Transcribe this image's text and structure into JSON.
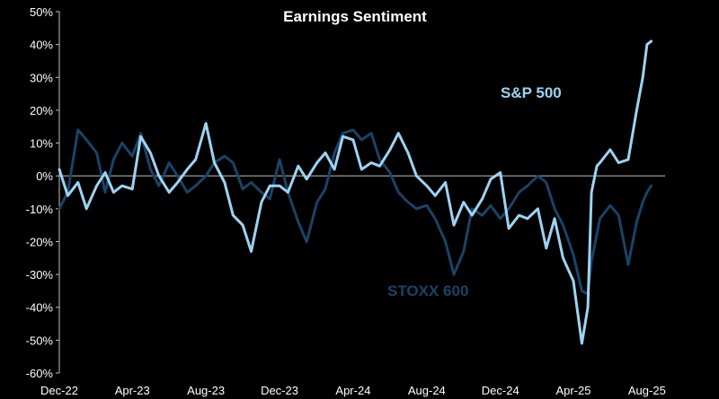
{
  "chart_data": {
    "type": "line",
    "title": "Earnings Sentiment",
    "xlabel": "",
    "ylabel": "",
    "x_tick_labels": [
      "Dec-22",
      "Apr-23",
      "Aug-23",
      "Dec-23",
      "Apr-24",
      "Aug-24",
      "Dec-24",
      "Apr-25",
      "Aug-25"
    ],
    "y_tick_labels": [
      "50%",
      "40%",
      "30%",
      "20%",
      "10%",
      "0%",
      "-10%",
      "-20%",
      "-30%",
      "-40%",
      "-50%",
      "-60%"
    ],
    "y_ticks": [
      50,
      40,
      30,
      20,
      10,
      0,
      -10,
      -20,
      -30,
      -40,
      -50,
      -60
    ],
    "ylim": [
      -60,
      50
    ],
    "x_start": "2022-12-01",
    "x_end": "2025-08-31",
    "grid": false,
    "colors": {
      "background": "#000000",
      "axis": "#bfbfbf",
      "sp500": "#9dd3f2",
      "stoxx600": "#1b4266",
      "text": "#ffffff"
    },
    "series": [
      {
        "name": "S&P 500",
        "color": "#9dd3f2",
        "points": [
          [
            "2022-12-01",
            2
          ],
          [
            "2022-12-15",
            -6
          ],
          [
            "2023-01-01",
            -2
          ],
          [
            "2023-01-15",
            -10
          ],
          [
            "2023-02-01",
            -3
          ],
          [
            "2023-02-15",
            1
          ],
          [
            "2023-03-01",
            -5
          ],
          [
            "2023-03-15",
            -3
          ],
          [
            "2023-04-01",
            -4
          ],
          [
            "2023-04-15",
            12
          ],
          [
            "2023-05-01",
            7
          ],
          [
            "2023-05-15",
            0
          ],
          [
            "2023-06-01",
            -5
          ],
          [
            "2023-06-15",
            -2
          ],
          [
            "2023-07-01",
            2
          ],
          [
            "2023-07-15",
            5
          ],
          [
            "2023-08-01",
            16
          ],
          [
            "2023-08-15",
            4
          ],
          [
            "2023-09-01",
            -2
          ],
          [
            "2023-09-15",
            -12
          ],
          [
            "2023-10-01",
            -15
          ],
          [
            "2023-10-15",
            -23
          ],
          [
            "2023-11-01",
            -8
          ],
          [
            "2023-11-15",
            -3
          ],
          [
            "2023-12-01",
            -3
          ],
          [
            "2023-12-15",
            -5
          ],
          [
            "2024-01-01",
            3
          ],
          [
            "2024-01-15",
            -1
          ],
          [
            "2024-02-01",
            4
          ],
          [
            "2024-02-15",
            7
          ],
          [
            "2024-03-01",
            2
          ],
          [
            "2024-03-15",
            12
          ],
          [
            "2024-04-01",
            11
          ],
          [
            "2024-04-15",
            2
          ],
          [
            "2024-05-01",
            4
          ],
          [
            "2024-05-15",
            3
          ],
          [
            "2024-06-01",
            8
          ],
          [
            "2024-06-15",
            13
          ],
          [
            "2024-07-01",
            7
          ],
          [
            "2024-07-15",
            0
          ],
          [
            "2024-08-01",
            -3
          ],
          [
            "2024-08-15",
            -6
          ],
          [
            "2024-09-01",
            -2
          ],
          [
            "2024-09-15",
            -15
          ],
          [
            "2024-10-01",
            -8
          ],
          [
            "2024-10-15",
            -12
          ],
          [
            "2024-11-01",
            -7
          ],
          [
            "2024-11-15",
            -1
          ],
          [
            "2024-12-01",
            1
          ],
          [
            "2024-12-15",
            -16
          ],
          [
            "2025-01-01",
            -12
          ],
          [
            "2025-01-15",
            -13
          ],
          [
            "2025-02-01",
            -10
          ],
          [
            "2025-02-15",
            -22
          ],
          [
            "2025-03-01",
            -13
          ],
          [
            "2025-03-15",
            -25
          ],
          [
            "2025-04-01",
            -32
          ],
          [
            "2025-04-15",
            -51
          ],
          [
            "2025-04-25",
            -40
          ],
          [
            "2025-05-01",
            -5
          ],
          [
            "2025-05-10",
            3
          ],
          [
            "2025-05-15",
            4
          ],
          [
            "2025-06-01",
            8
          ],
          [
            "2025-06-15",
            4
          ],
          [
            "2025-07-01",
            5
          ],
          [
            "2025-07-15",
            20
          ],
          [
            "2025-07-25",
            30
          ],
          [
            "2025-08-01",
            40
          ],
          [
            "2025-08-08",
            41
          ]
        ]
      },
      {
        "name": "STOXX 600",
        "color": "#1b4266",
        "points": [
          [
            "2022-12-01",
            -10
          ],
          [
            "2022-12-15",
            -5
          ],
          [
            "2023-01-01",
            14
          ],
          [
            "2023-01-15",
            11
          ],
          [
            "2023-02-01",
            7
          ],
          [
            "2023-02-15",
            -5
          ],
          [
            "2023-03-01",
            5
          ],
          [
            "2023-03-15",
            10
          ],
          [
            "2023-04-01",
            6
          ],
          [
            "2023-04-15",
            13
          ],
          [
            "2023-05-01",
            2
          ],
          [
            "2023-05-15",
            -3
          ],
          [
            "2023-06-01",
            4
          ],
          [
            "2023-06-15",
            0
          ],
          [
            "2023-07-01",
            -5
          ],
          [
            "2023-07-15",
            -3
          ],
          [
            "2023-08-01",
            0
          ],
          [
            "2023-08-15",
            4
          ],
          [
            "2023-09-01",
            6
          ],
          [
            "2023-09-15",
            4
          ],
          [
            "2023-10-01",
            -4
          ],
          [
            "2023-10-15",
            -2
          ],
          [
            "2023-11-01",
            -5
          ],
          [
            "2023-11-15",
            -7
          ],
          [
            "2023-12-01",
            5
          ],
          [
            "2023-12-15",
            -5
          ],
          [
            "2024-01-01",
            -14
          ],
          [
            "2024-01-15",
            -20
          ],
          [
            "2024-02-01",
            -8
          ],
          [
            "2024-02-15",
            -4
          ],
          [
            "2024-03-01",
            7
          ],
          [
            "2024-03-15",
            13
          ],
          [
            "2024-04-01",
            14
          ],
          [
            "2024-04-15",
            11
          ],
          [
            "2024-05-01",
            13
          ],
          [
            "2024-05-15",
            5
          ],
          [
            "2024-06-01",
            1
          ],
          [
            "2024-06-15",
            -5
          ],
          [
            "2024-07-01",
            -8
          ],
          [
            "2024-07-15",
            -10
          ],
          [
            "2024-08-01",
            -9
          ],
          [
            "2024-08-15",
            -13
          ],
          [
            "2024-09-01",
            -20
          ],
          [
            "2024-09-15",
            -30
          ],
          [
            "2024-10-01",
            -23
          ],
          [
            "2024-10-15",
            -10
          ],
          [
            "2024-11-01",
            -12
          ],
          [
            "2024-11-15",
            -9
          ],
          [
            "2024-12-01",
            -13
          ],
          [
            "2024-12-15",
            -10
          ],
          [
            "2025-01-01",
            -5
          ],
          [
            "2025-01-15",
            -3
          ],
          [
            "2025-02-01",
            0
          ],
          [
            "2025-02-15",
            -2
          ],
          [
            "2025-03-01",
            -10
          ],
          [
            "2025-03-15",
            -15
          ],
          [
            "2025-04-01",
            -24
          ],
          [
            "2025-04-15",
            -35
          ],
          [
            "2025-04-25",
            -36
          ],
          [
            "2025-05-01",
            -26
          ],
          [
            "2025-05-15",
            -13
          ],
          [
            "2025-06-01",
            -9
          ],
          [
            "2025-06-15",
            -12
          ],
          [
            "2025-07-01",
            -27
          ],
          [
            "2025-07-15",
            -14
          ],
          [
            "2025-07-25",
            -8
          ],
          [
            "2025-08-01",
            -5
          ],
          [
            "2025-08-08",
            -3
          ]
        ]
      }
    ]
  }
}
